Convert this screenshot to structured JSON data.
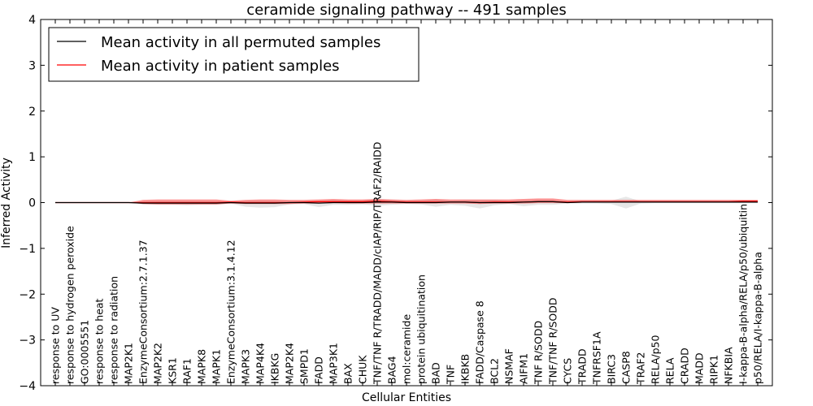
{
  "chart_data": {
    "type": "line",
    "title": "ceramide signaling pathway -- 491 samples",
    "xlabel": "Cellular Entities",
    "ylabel": "Inferred Activity",
    "ylim": [
      -4,
      4
    ],
    "yticks": [
      -4,
      -3,
      -2,
      -1,
      0,
      1,
      2,
      3,
      4
    ],
    "ytick_labels": [
      "−4",
      "−3",
      "−2",
      "−1",
      "0",
      "1",
      "2",
      "3",
      "4"
    ],
    "grid": false,
    "legend_position": "top-left",
    "categories": [
      "response to UV",
      "response to hydrogen peroxide",
      "GO:0005551",
      "response to heat",
      "response to radiation",
      "MAP2K1",
      "EnzymeConsortium:2.7.1.37",
      "MAP2K2",
      "KSR1",
      "RAF1",
      "MAPK8",
      "MAPK1",
      "EnzymeConsortium:3.1.4.12",
      "MAPK3",
      "MAP4K4",
      "IKBKG",
      "MAP2K4",
      "SMPD1",
      "FADD",
      "MAP3K1",
      "BAX",
      "CHUK",
      "TNF/TNF R/TRADD/MADD/cIAP/RIP/TRAF2/RAIDD",
      "BAG4",
      "mol:ceramide",
      "protein ubiquitination",
      "BAD",
      "TNF",
      "IKBKB",
      "FADD/Caspase 8",
      "BCL2",
      "NSMAF",
      "AIFM1",
      "TNF R/SODD",
      "TNF/TNF R/SODD",
      "CYCS",
      "TRADD",
      "TNFRSF1A",
      "BIRC3",
      "CASP8",
      "TRAF2",
      "RELA/p50",
      "RELA",
      "CRADD",
      "MADD",
      "RIPK1",
      "NFKBIA",
      "I-kappa-B-alpha/RELA/p50/ubiquitin",
      "p50/RELA/I-kappa-B-alpha"
    ],
    "series": [
      {
        "name": "Mean activity in all permuted samples",
        "color": "#000000",
        "values": [
          0,
          0,
          0,
          0,
          0,
          0,
          -0.01,
          -0.01,
          -0.01,
          -0.01,
          -0.01,
          -0.01,
          0,
          -0.01,
          -0.01,
          -0.01,
          0,
          0,
          -0.01,
          0,
          0,
          0,
          0.01,
          0.01,
          0,
          0,
          0,
          0.01,
          0.01,
          0,
          0,
          0,
          0.01,
          0.02,
          0.02,
          0,
          0.01,
          0.01,
          0.01,
          0.01,
          0.01,
          0.01,
          0.01,
          0.01,
          0.01,
          0.01,
          0.01,
          0.01,
          0.01
        ],
        "band_low": [
          0,
          0,
          0,
          0,
          0,
          0,
          -0.04,
          -0.05,
          -0.05,
          -0.06,
          -0.05,
          -0.05,
          -0.02,
          -0.09,
          -0.11,
          -0.1,
          -0.04,
          -0.03,
          -0.1,
          -0.05,
          -0.05,
          -0.04,
          -0.07,
          -0.05,
          -0.03,
          -0.04,
          -0.09,
          -0.05,
          -0.07,
          -0.13,
          -0.06,
          -0.03,
          -0.08,
          -0.05,
          -0.05,
          -0.02,
          -0.02,
          -0.02,
          -0.03,
          -0.13,
          -0.02,
          -0.01,
          -0.01,
          -0.01,
          -0.01,
          -0.01,
          -0.01,
          -0.01,
          -0.01
        ],
        "band_high": [
          0,
          0,
          0,
          0,
          0,
          0,
          0.03,
          0.04,
          0.04,
          0.04,
          0.04,
          0.04,
          0.02,
          0.04,
          0.05,
          0.05,
          0.04,
          0.03,
          0.04,
          0.06,
          0.05,
          0.05,
          0.08,
          0.06,
          0.04,
          0.05,
          0.07,
          0.05,
          0.06,
          0.06,
          0.06,
          0.04,
          0.06,
          0.07,
          0.07,
          0.03,
          0.03,
          0.04,
          0.04,
          0.13,
          0.03,
          0.03,
          0.03,
          0.03,
          0.03,
          0.03,
          0.03,
          0.03,
          0.03
        ]
      },
      {
        "name": "Mean activity in patient samples",
        "color": "#ff0000",
        "values": [
          0,
          0,
          0,
          0,
          0,
          0,
          0,
          0,
          0,
          0,
          0,
          0,
          0.01,
          0,
          0,
          0,
          0,
          0.01,
          0.02,
          0.02,
          0.02,
          0.02,
          0.03,
          0.02,
          0.01,
          0.01,
          0.01,
          0.01,
          0.01,
          0,
          0.01,
          0.01,
          0.01,
          0.02,
          0.02,
          0.01,
          0.02,
          0.02,
          0.02,
          0.02,
          0.02,
          0.02,
          0.02,
          0.02,
          0.02,
          0.02,
          0.02,
          0.03,
          0.03
        ],
        "band_low": [
          0,
          0,
          0,
          0,
          0,
          0,
          -0.03,
          -0.04,
          -0.04,
          -0.04,
          -0.04,
          -0.04,
          -0.02,
          -0.03,
          -0.03,
          -0.03,
          -0.03,
          -0.02,
          -0.02,
          -0.01,
          -0.02,
          -0.02,
          -0.02,
          -0.02,
          -0.02,
          -0.02,
          -0.02,
          -0.02,
          -0.02,
          -0.03,
          -0.02,
          -0.02,
          -0.02,
          -0.01,
          -0.01,
          -0.01,
          0,
          0,
          0,
          0,
          0,
          0,
          0,
          0,
          0,
          0,
          0,
          0,
          0
        ],
        "band_high": [
          0,
          0,
          0,
          0,
          0,
          0,
          0.06,
          0.07,
          0.07,
          0.07,
          0.07,
          0.07,
          0.04,
          0.06,
          0.07,
          0.07,
          0.06,
          0.06,
          0.07,
          0.08,
          0.07,
          0.07,
          0.08,
          0.07,
          0.06,
          0.07,
          0.08,
          0.07,
          0.07,
          0.07,
          0.07,
          0.07,
          0.08,
          0.09,
          0.09,
          0.06,
          0.06,
          0.06,
          0.06,
          0.06,
          0.06,
          0.06,
          0.06,
          0.06,
          0.06,
          0.06,
          0.06,
          0.06,
          0.06
        ]
      }
    ]
  }
}
